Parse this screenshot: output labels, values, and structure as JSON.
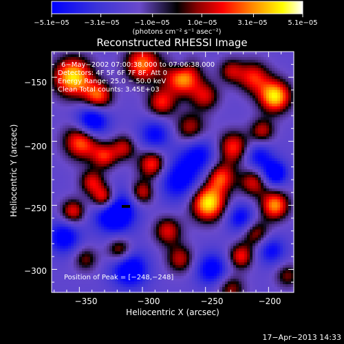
{
  "chart_data": {
    "type": "heatmap",
    "title": "Reconstructed RHESSI Image",
    "xlabel": "Heliocentric X (arcsec)",
    "ylabel": "Heliocentric Y (arcsec)",
    "xlim": [
      -372,
      -180
    ],
    "ylim": [
      -318,
      -130
    ],
    "x_ticks": [
      -350,
      -300,
      -250,
      -200
    ],
    "x_tick_labels": [
      "−350",
      "−300",
      "−250",
      "−200"
    ],
    "y_ticks": [
      -150,
      -200,
      -250,
      -300
    ],
    "y_tick_labels": [
      "−150",
      "−200",
      "−250",
      "−300"
    ],
    "colorbar": {
      "range": [
        -5.1e-05,
        5.1e-05
      ],
      "ticks": [
        -5.1e-05,
        -3.1e-05,
        -1e-05,
        1e-05,
        3.1e-05,
        5.1e-05
      ],
      "tick_labels": [
        "−5.1e−05",
        "−3.1e−05",
        "−1.0e−05",
        "1.0e−05",
        "3.1e−05",
        "5.1e−05"
      ],
      "unit_label": "(photons cm⁻² s⁻¹ asec⁻²)"
    },
    "annotations": {
      "time": "6−May−2002 07:00:38.000 to 07:06:38.000",
      "detectors": "Detectors: 4F 5F 6F 7F 8F, Att 0",
      "energy": "Energy Range: 25.0 − 50.0 keV",
      "counts": "Clean    Total counts: 3.45E+03",
      "peak": "Position of Peak = [−248,−248]"
    },
    "peak_position": [
      -248,
      -248
    ],
    "footer_date": "17−Apr−2013 14:33",
    "sources": [
      {
        "x": -355,
        "y": -150,
        "amp": 0.95,
        "s": 11
      },
      {
        "x": -335,
        "y": -165,
        "amp": 0.7,
        "s": 8
      },
      {
        "x": -348,
        "y": -200,
        "amp": 0.8,
        "s": 10
      },
      {
        "x": -330,
        "y": -212,
        "amp": 0.55,
        "s": 7
      },
      {
        "x": -315,
        "y": -205,
        "amp": 0.5,
        "s": 7
      },
      {
        "x": -300,
        "y": -140,
        "amp": 0.75,
        "s": 10
      },
      {
        "x": -285,
        "y": -170,
        "amp": 0.6,
        "s": 8
      },
      {
        "x": -268,
        "y": -150,
        "amp": 0.85,
        "s": 10
      },
      {
        "x": -250,
        "y": -165,
        "amp": 0.5,
        "s": 8
      },
      {
        "x": -230,
        "y": -145,
        "amp": 0.45,
        "s": 7
      },
      {
        "x": -212,
        "y": -150,
        "amp": 0.6,
        "s": 9
      },
      {
        "x": -195,
        "y": -165,
        "amp": 0.95,
        "s": 9
      },
      {
        "x": -205,
        "y": -192,
        "amp": 0.5,
        "s": 7
      },
      {
        "x": -228,
        "y": -205,
        "amp": 0.65,
        "s": 9
      },
      {
        "x": -262,
        "y": -190,
        "amp": 0.5,
        "s": 9
      },
      {
        "x": -292,
        "y": -218,
        "amp": 0.7,
        "s": 8
      },
      {
        "x": -340,
        "y": -232,
        "amp": 0.55,
        "s": 7
      },
      {
        "x": -330,
        "y": -245,
        "amp": 0.9,
        "s": 7
      },
      {
        "x": -355,
        "y": -255,
        "amp": 0.6,
        "s": 7
      },
      {
        "x": -300,
        "y": -240,
        "amp": 0.55,
        "s": 7
      },
      {
        "x": -248,
        "y": -248,
        "amp": 1.0,
        "s": 10
      },
      {
        "x": -238,
        "y": -228,
        "amp": 0.65,
        "s": 8
      },
      {
        "x": -212,
        "y": -232,
        "amp": 0.55,
        "s": 8
      },
      {
        "x": -195,
        "y": -250,
        "amp": 0.8,
        "s": 8
      },
      {
        "x": -210,
        "y": -272,
        "amp": 0.5,
        "s": 8
      },
      {
        "x": -222,
        "y": -290,
        "amp": 0.6,
        "s": 7
      },
      {
        "x": -280,
        "y": -270,
        "amp": 0.55,
        "s": 8
      },
      {
        "x": -270,
        "y": -292,
        "amp": 0.5,
        "s": 8
      },
      {
        "x": -318,
        "y": -285,
        "amp": 0.55,
        "s": 7
      },
      {
        "x": -345,
        "y": -292,
        "amp": 0.4,
        "s": 7
      },
      {
        "x": -230,
        "y": -315,
        "amp": 0.45,
        "s": 8
      },
      {
        "x": -185,
        "y": -305,
        "amp": 0.4,
        "s": 7
      },
      {
        "x": -340,
        "y": -185,
        "amp": -0.8,
        "s": 9
      },
      {
        "x": -322,
        "y": -255,
        "amp": -0.95,
        "s": 11
      },
      {
        "x": -310,
        "y": -300,
        "amp": -0.7,
        "s": 10
      },
      {
        "x": -270,
        "y": -230,
        "amp": -0.6,
        "s": 12
      },
      {
        "x": -255,
        "y": -210,
        "amp": -0.5,
        "s": 10
      },
      {
        "x": -245,
        "y": -300,
        "amp": -0.6,
        "s": 9
      },
      {
        "x": -208,
        "y": -212,
        "amp": -0.5,
        "s": 8
      },
      {
        "x": -222,
        "y": -260,
        "amp": -0.55,
        "s": 8
      },
      {
        "x": -290,
        "y": -195,
        "amp": -0.5,
        "s": 9
      },
      {
        "x": -362,
        "y": -275,
        "amp": -0.6,
        "s": 9
      },
      {
        "x": -198,
        "y": -285,
        "amp": -0.5,
        "s": 8
      },
      {
        "x": -270,
        "y": -140,
        "amp": -0.3,
        "s": 6
      },
      {
        "x": -195,
        "y": -225,
        "amp": -0.7,
        "s": 7
      }
    ]
  }
}
